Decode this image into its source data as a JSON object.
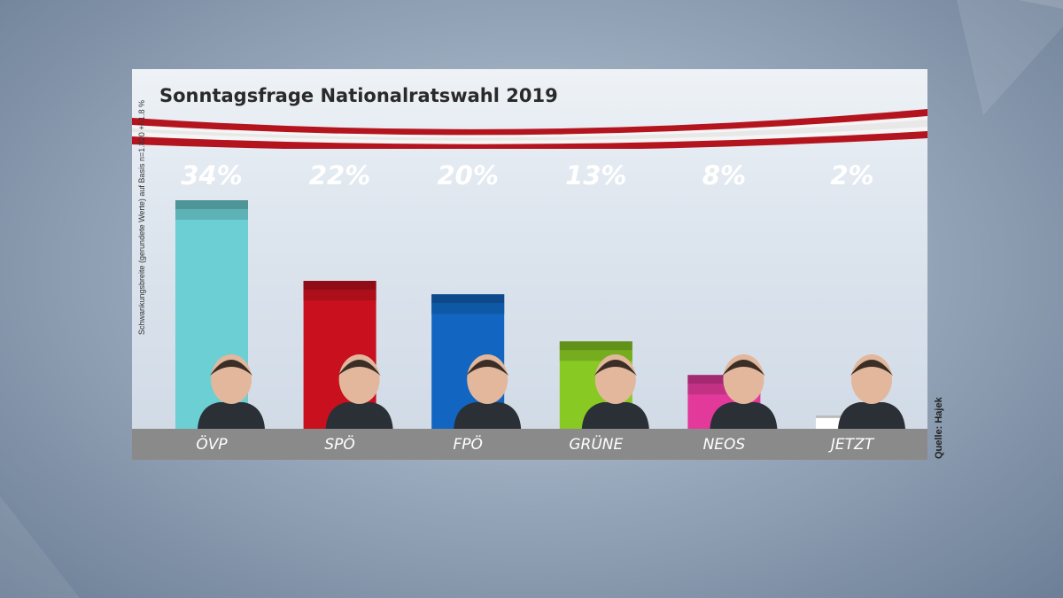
{
  "title": "Sonntagsfrage Nationalratswahl 2019",
  "side_note": "Schwankungsbreite (gerundete Werte) auf Basis n=1.820 +/-1.8 %",
  "source": "Quelle: Hajek",
  "colors": {
    "ÖVP": "#6ccfd3",
    "SPÖ": "#c8101e",
    "FPÖ": "#1266c1",
    "GRÜNE": "#88c923",
    "NEOS": "#e3399b",
    "JETZT": "#ffffff",
    "label_band": "#8a8a8a",
    "ribbon_red": "#b4141e"
  },
  "chart_data": {
    "type": "bar",
    "categories": [
      "ÖVP",
      "SPÖ",
      "FPÖ",
      "GRÜNE",
      "NEOS",
      "JETZT"
    ],
    "values": [
      34,
      22,
      20,
      13,
      8,
      2
    ],
    "value_labels": [
      "34%",
      "22%",
      "20%",
      "13%",
      "8%",
      "2%"
    ],
    "title": "Sonntagsfrage Nationalratswahl 2019",
    "xlabel": "",
    "ylabel": "",
    "ylim": [
      0,
      34
    ],
    "grid": false,
    "legend": "none"
  }
}
